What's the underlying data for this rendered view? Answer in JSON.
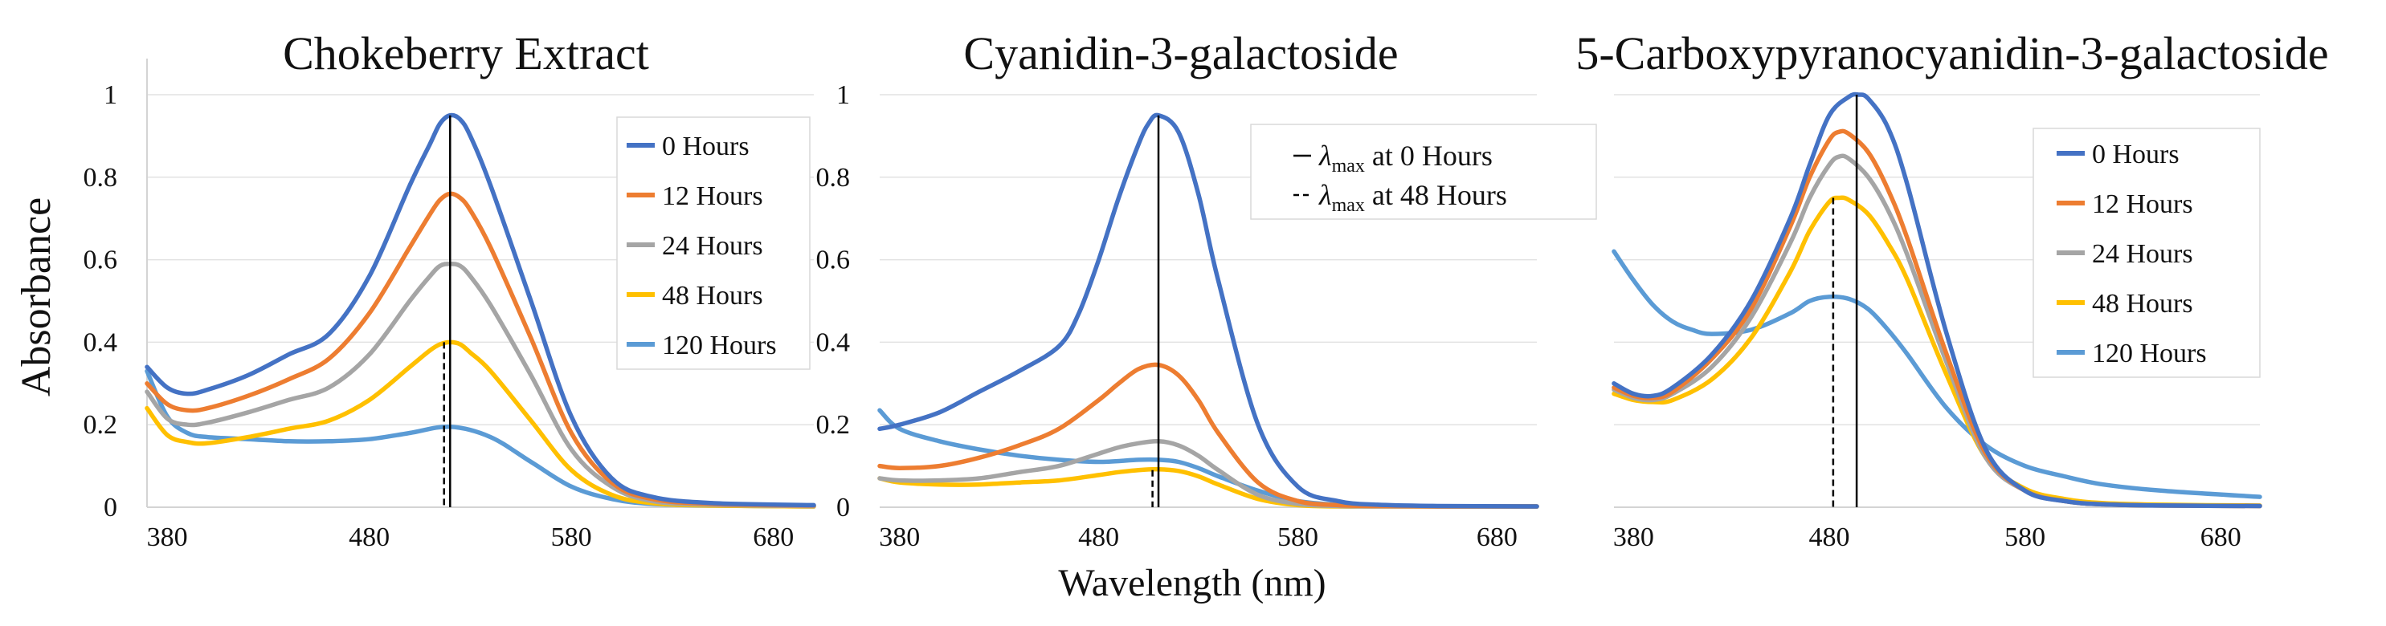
{
  "figure": {
    "ylabel": "Absorbance",
    "xlabel": "Wavelength (nm)"
  },
  "colors": {
    "0 Hours": "#4472C4",
    "12 Hours": "#ED7D31",
    "24 Hours": "#A5A5A5",
    "48 Hours": "#FFC000",
    "120 Hours": "#5B9BD5",
    "grid": "#e2e2e2",
    "axis": "#d4d4d4",
    "marker": "#000000"
  },
  "chart_data": [
    {
      "type": "line",
      "title": "Chokeberry Extract",
      "xlim": [
        370,
        700
      ],
      "ylim": [
        0,
        1
      ],
      "xticks": [
        "380",
        "480",
        "580",
        "680"
      ],
      "yticks": [
        "0",
        "0.2",
        "0.4",
        "0.6",
        "0.8",
        "1"
      ],
      "legend": "top-right",
      "legend_entries": [
        "0 Hours",
        "12 Hours",
        "24 Hours",
        "48 Hours",
        "120 Hours"
      ],
      "series": [
        {
          "name": "0 Hours",
          "x": [
            370,
            380,
            390,
            400,
            420,
            440,
            460,
            480,
            500,
            510,
            515,
            520,
            525,
            530,
            540,
            560,
            580,
            600,
            620,
            650,
            700
          ],
          "y": [
            0.34,
            0.29,
            0.275,
            0.285,
            0.32,
            0.37,
            0.42,
            0.56,
            0.78,
            0.88,
            0.93,
            0.95,
            0.94,
            0.9,
            0.78,
            0.5,
            0.22,
            0.07,
            0.025,
            0.01,
            0.005
          ]
        },
        {
          "name": "12 Hours",
          "x": [
            370,
            380,
            390,
            400,
            420,
            440,
            460,
            480,
            500,
            510,
            515,
            520,
            525,
            530,
            540,
            560,
            580,
            600,
            620,
            650,
            700
          ],
          "y": [
            0.3,
            0.25,
            0.235,
            0.24,
            0.27,
            0.31,
            0.36,
            0.47,
            0.63,
            0.71,
            0.745,
            0.76,
            0.75,
            0.72,
            0.63,
            0.41,
            0.18,
            0.06,
            0.02,
            0.008,
            0.004
          ]
        },
        {
          "name": "24 Hours",
          "x": [
            370,
            380,
            390,
            400,
            420,
            440,
            460,
            480,
            500,
            510,
            515,
            520,
            525,
            530,
            540,
            560,
            580,
            600,
            620,
            650,
            700
          ],
          "y": [
            0.28,
            0.215,
            0.2,
            0.205,
            0.23,
            0.26,
            0.29,
            0.37,
            0.5,
            0.56,
            0.585,
            0.59,
            0.585,
            0.56,
            0.49,
            0.32,
            0.14,
            0.05,
            0.015,
            0.006,
            0.003
          ]
        },
        {
          "name": "48 Hours",
          "x": [
            370,
            380,
            390,
            400,
            420,
            440,
            460,
            480,
            500,
            510,
            515,
            520,
            525,
            530,
            540,
            560,
            580,
            600,
            620,
            650,
            700
          ],
          "y": [
            0.24,
            0.175,
            0.158,
            0.155,
            0.17,
            0.19,
            0.21,
            0.26,
            0.34,
            0.38,
            0.395,
            0.4,
            0.395,
            0.375,
            0.33,
            0.21,
            0.09,
            0.03,
            0.01,
            0.004,
            0.002
          ]
        },
        {
          "name": "120 Hours",
          "x": [
            370,
            380,
            390,
            400,
            420,
            440,
            460,
            480,
            500,
            520,
            540,
            560,
            580,
            600,
            620,
            650,
            700
          ],
          "y": [
            0.33,
            0.22,
            0.18,
            0.17,
            0.165,
            0.16,
            0.16,
            0.165,
            0.18,
            0.195,
            0.17,
            0.11,
            0.05,
            0.02,
            0.008,
            0.004,
            0.002
          ]
        }
      ],
      "vlines": [
        {
          "x": 520,
          "style": "solid",
          "ymax": 0.95
        },
        {
          "x": 517,
          "style": "dashed",
          "ymax": 0.4
        }
      ]
    },
    {
      "type": "line",
      "title": "Cyanidin-3-galactoside",
      "xlim": [
        370,
        700
      ],
      "ylim": [
        0,
        1
      ],
      "xticks": [
        "380",
        "480",
        "580",
        "680"
      ],
      "yticks": [
        "0",
        "0.2",
        "0.4",
        "0.6",
        "0.8",
        "1"
      ],
      "legend": "top-right",
      "legend_entries": [
        {
          "style": "solid",
          "label_main": "λ",
          "label_sub": "max",
          "label_rest": " at 0 Hours"
        },
        {
          "style": "dashed",
          "label_main": "λ",
          "label_sub": "max",
          "label_rest": " at 48 Hours"
        }
      ],
      "series": [
        {
          "name": "0 Hours",
          "x": [
            370,
            380,
            400,
            420,
            440,
            460,
            470,
            480,
            490,
            500,
            505,
            510,
            520,
            530,
            540,
            560,
            580,
            600,
            620,
            650,
            700
          ],
          "y": [
            0.19,
            0.2,
            0.23,
            0.28,
            0.33,
            0.39,
            0.47,
            0.6,
            0.75,
            0.88,
            0.93,
            0.95,
            0.91,
            0.76,
            0.55,
            0.2,
            0.05,
            0.015,
            0.006,
            0.003,
            0.002
          ]
        },
        {
          "name": "12 Hours",
          "x": [
            370,
            380,
            400,
            420,
            440,
            460,
            480,
            490,
            500,
            510,
            520,
            530,
            540,
            560,
            580,
            600,
            620,
            650,
            700
          ],
          "y": [
            0.1,
            0.095,
            0.1,
            0.12,
            0.15,
            0.19,
            0.26,
            0.3,
            0.335,
            0.345,
            0.32,
            0.26,
            0.18,
            0.06,
            0.015,
            0.005,
            0.003,
            0.002,
            0.002
          ]
        },
        {
          "name": "24 Hours",
          "x": [
            370,
            380,
            400,
            420,
            440,
            460,
            480,
            490,
            500,
            510,
            520,
            530,
            540,
            560,
            580,
            600,
            620,
            650,
            700
          ],
          "y": [
            0.07,
            0.065,
            0.065,
            0.07,
            0.085,
            0.1,
            0.13,
            0.145,
            0.155,
            0.16,
            0.15,
            0.125,
            0.09,
            0.03,
            0.008,
            0.003,
            0.002,
            0.002,
            0.002
          ]
        },
        {
          "name": "48 Hours",
          "x": [
            370,
            380,
            400,
            420,
            440,
            460,
            480,
            490,
            500,
            510,
            520,
            530,
            540,
            560,
            580,
            600,
            620,
            650,
            700
          ],
          "y": [
            0.07,
            0.06,
            0.055,
            0.055,
            0.06,
            0.065,
            0.078,
            0.085,
            0.09,
            0.092,
            0.088,
            0.075,
            0.055,
            0.02,
            0.005,
            0.002,
            0.002,
            0.002,
            0.002
          ]
        },
        {
          "name": "120 Hours",
          "x": [
            370,
            380,
            400,
            420,
            440,
            460,
            480,
            500,
            510,
            520,
            530,
            540,
            560,
            580,
            600,
            620,
            650,
            700
          ],
          "y": [
            0.235,
            0.19,
            0.16,
            0.14,
            0.125,
            0.115,
            0.11,
            0.115,
            0.115,
            0.11,
            0.095,
            0.075,
            0.04,
            0.015,
            0.006,
            0.003,
            0.002,
            0.002
          ]
        }
      ],
      "vlines": [
        {
          "x": 510,
          "style": "solid",
          "ymax": 0.95
        },
        {
          "x": 507,
          "style": "dashed",
          "ymax": 0.09
        }
      ]
    },
    {
      "type": "line",
      "title": "5-Carboxypyranocyanidin-3-galactoside",
      "xlim": [
        370,
        700
      ],
      "ylim": [
        0,
        1
      ],
      "xticks": [
        "380",
        "480",
        "580",
        "680"
      ],
      "yticks": [],
      "legend": "top-right",
      "legend_entries": [
        "0 Hours",
        "12 Hours",
        "24 Hours",
        "48 Hours",
        "120 Hours"
      ],
      "series": [
        {
          "name": "0 Hours",
          "x": [
            370,
            380,
            390,
            400,
            420,
            440,
            460,
            470,
            480,
            490,
            495,
            500,
            510,
            520,
            540,
            560,
            580,
            600,
            620,
            650,
            700
          ],
          "y": [
            0.3,
            0.275,
            0.27,
            0.29,
            0.37,
            0.5,
            0.7,
            0.83,
            0.95,
            0.995,
            1.0,
            0.99,
            0.92,
            0.78,
            0.42,
            0.14,
            0.04,
            0.015,
            0.007,
            0.004,
            0.003
          ]
        },
        {
          "name": "12 Hours",
          "x": [
            370,
            380,
            390,
            400,
            420,
            440,
            460,
            470,
            480,
            485,
            490,
            500,
            510,
            520,
            540,
            560,
            580,
            600,
            620,
            650,
            700
          ],
          "y": [
            0.29,
            0.27,
            0.265,
            0.28,
            0.36,
            0.48,
            0.68,
            0.8,
            0.89,
            0.91,
            0.905,
            0.86,
            0.77,
            0.65,
            0.37,
            0.13,
            0.04,
            0.015,
            0.007,
            0.004,
            0.003
          ]
        },
        {
          "name": "24 Hours",
          "x": [
            370,
            380,
            390,
            400,
            420,
            440,
            460,
            470,
            480,
            485,
            490,
            500,
            510,
            520,
            540,
            560,
            580,
            600,
            620,
            650,
            700
          ],
          "y": [
            0.285,
            0.265,
            0.26,
            0.275,
            0.34,
            0.46,
            0.64,
            0.75,
            0.83,
            0.85,
            0.845,
            0.8,
            0.72,
            0.61,
            0.35,
            0.12,
            0.04,
            0.015,
            0.007,
            0.004,
            0.003
          ]
        },
        {
          "name": "48 Hours",
          "x": [
            370,
            380,
            390,
            400,
            420,
            440,
            460,
            470,
            480,
            485,
            490,
            500,
            510,
            520,
            540,
            560,
            580,
            600,
            620,
            650,
            700
          ],
          "y": [
            0.275,
            0.26,
            0.255,
            0.26,
            0.31,
            0.41,
            0.57,
            0.67,
            0.74,
            0.75,
            0.745,
            0.71,
            0.64,
            0.55,
            0.32,
            0.12,
            0.045,
            0.02,
            0.01,
            0.006,
            0.004
          ]
        },
        {
          "name": "120 Hours",
          "x": [
            370,
            380,
            390,
            400,
            410,
            420,
            440,
            460,
            470,
            480,
            490,
            500,
            510,
            520,
            540,
            560,
            580,
            600,
            620,
            650,
            700
          ],
          "y": [
            0.62,
            0.55,
            0.49,
            0.45,
            0.43,
            0.42,
            0.43,
            0.47,
            0.5,
            0.51,
            0.505,
            0.48,
            0.43,
            0.37,
            0.24,
            0.15,
            0.1,
            0.075,
            0.055,
            0.04,
            0.025
          ]
        }
      ],
      "vlines": [
        {
          "x": 494,
          "style": "solid",
          "ymax": 1.0
        },
        {
          "x": 482,
          "style": "dashed",
          "ymax": 0.75
        }
      ]
    }
  ]
}
